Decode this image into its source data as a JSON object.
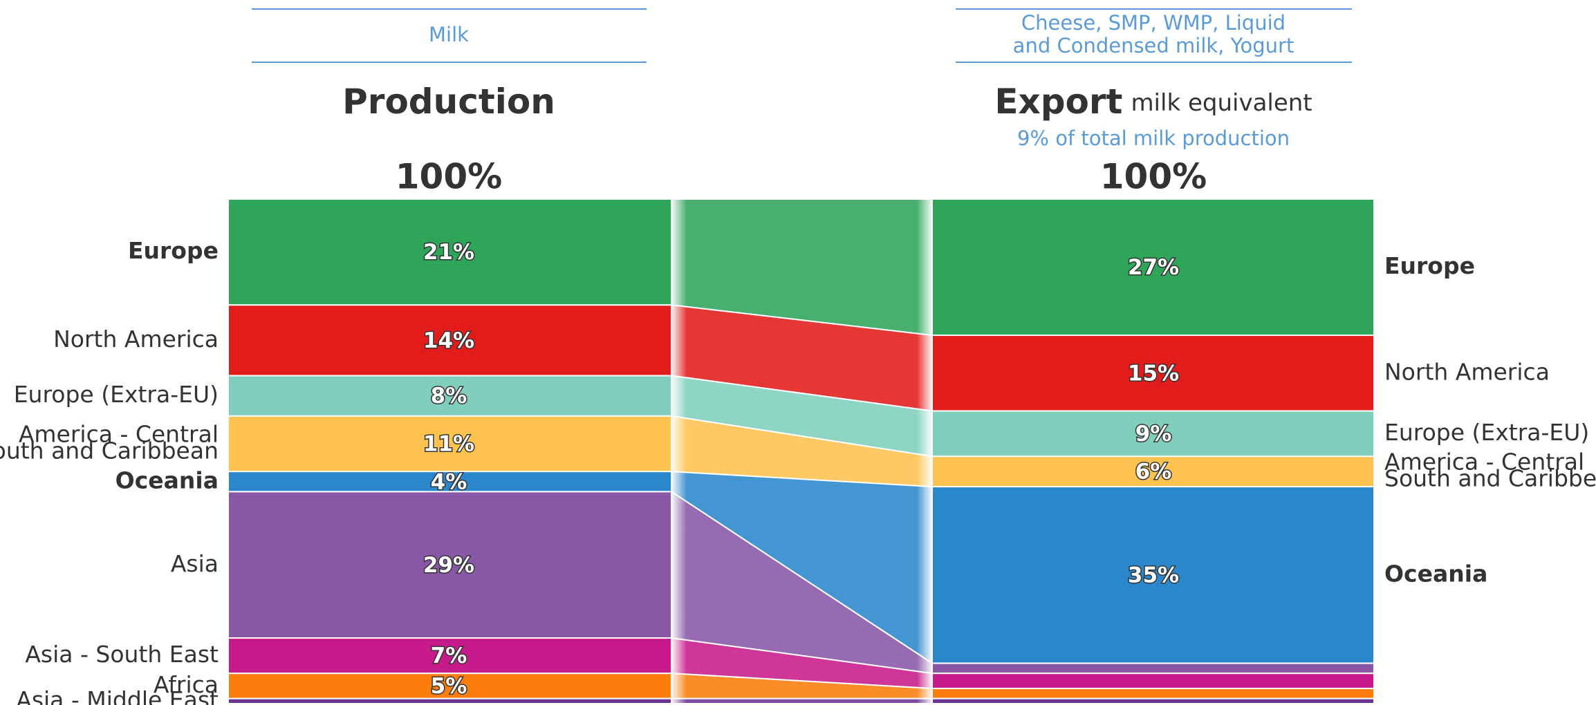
{
  "chart_data": {
    "type": "stacked-compare",
    "categories": [
      [
        "Europe"
      ],
      [
        "North America"
      ],
      [
        "Europe (Extra-EU)"
      ],
      [
        "America - Central",
        "South and Caribbean"
      ],
      [
        "Oceania"
      ],
      [
        "Asia"
      ],
      [
        "Asia - South East"
      ],
      [
        "Africa"
      ],
      [
        "Asia - Middle East"
      ]
    ],
    "bold": [
      true,
      false,
      false,
      false,
      true,
      false,
      false,
      false,
      false
    ],
    "colors": [
      "#2fa55a",
      "#e21b1b",
      "#80cfbc",
      "#fec24f",
      "#2a87cc",
      "#8857a6",
      "#c71a8a",
      "#fb7d0b",
      "#6b3393"
    ],
    "series": [
      {
        "name": "Production",
        "header": [
          "Milk"
        ],
        "total": 100,
        "total_label": "100%",
        "values": [
          21,
          14,
          8,
          11,
          4,
          29,
          7,
          5,
          1
        ],
        "value_labels": [
          "21%",
          "14%",
          "8%",
          "11%",
          "4%",
          "29%",
          "7%",
          "5%",
          null
        ]
      },
      {
        "name": "Export",
        "name_suffix": "milk equivalent",
        "subtitle": "9% of total milk production",
        "header": [
          "Cheese, SMP, WMP, Liquid",
          "and Condensed milk, Yogurt"
        ],
        "total": 100,
        "total_label": "100%",
        "values": [
          27,
          15,
          9,
          6,
          35,
          2,
          3,
          2,
          1
        ],
        "value_labels": [
          "27%",
          "15%",
          "9%",
          "6%",
          "35%",
          null,
          null,
          null,
          null
        ]
      }
    ]
  }
}
